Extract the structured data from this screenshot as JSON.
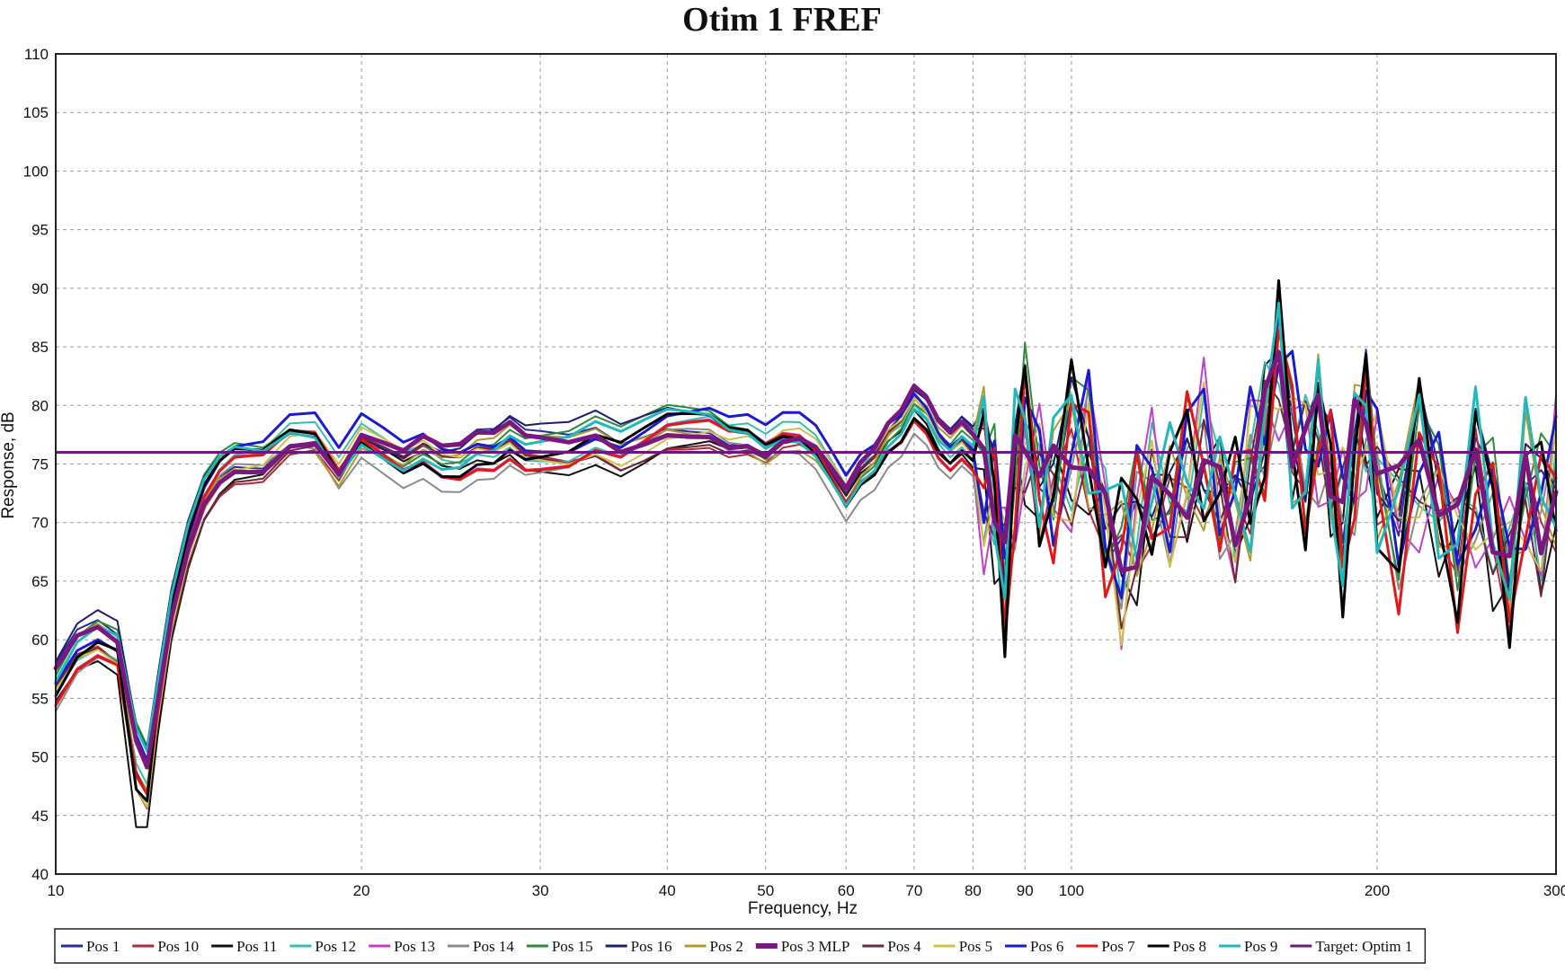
{
  "chart_data": {
    "type": "line",
    "title": "Otim 1 FREF",
    "xlabel": "Frequency, Hz",
    "ylabel": "Response, dB",
    "x_scale": "log",
    "xlim": [
      10,
      300
    ],
    "ylim": [
      40,
      110
    ],
    "x_ticks": [
      10,
      20,
      30,
      40,
      50,
      60,
      70,
      80,
      90,
      100,
      200,
      300
    ],
    "y_ticks": [
      40,
      45,
      50,
      55,
      60,
      65,
      70,
      75,
      80,
      85,
      90,
      95,
      100,
      105,
      110
    ],
    "grid": true,
    "legend_position": "bottom",
    "base_response": {
      "x": [
        10,
        10.5,
        11,
        11.5,
        12,
        12.3,
        12.6,
        13,
        13.5,
        14,
        14.5,
        15,
        15.5,
        16,
        17,
        18,
        19,
        20,
        21,
        22,
        23,
        24,
        25,
        26,
        27,
        28,
        29,
        30,
        32,
        34,
        36,
        38,
        40,
        42,
        44,
        46,
        48,
        50,
        52,
        54,
        56,
        58,
        60,
        62,
        64,
        66,
        68,
        70,
        72,
        74,
        76,
        78,
        80,
        82,
        84,
        86,
        88,
        90,
        93,
        96,
        100,
        104,
        108,
        112,
        116,
        120,
        125,
        130,
        135,
        140,
        145,
        150,
        155,
        160,
        165,
        170,
        175,
        180,
        185,
        190,
        195,
        200,
        210,
        220,
        230,
        240,
        250,
        260,
        270,
        280,
        290,
        300
      ],
      "y": [
        56,
        59,
        60,
        59,
        55,
        52,
        55,
        62,
        68,
        72,
        74,
        75,
        75,
        75,
        77,
        77,
        74,
        77,
        76,
        75,
        76,
        75,
        75,
        76,
        76,
        77,
        76,
        76,
        76,
        77,
        76,
        77,
        78,
        78,
        78,
        77,
        77,
        76,
        77,
        77,
        76,
        74,
        72,
        74,
        75,
        77,
        78,
        80,
        79,
        77,
        76,
        77,
        76,
        74,
        72,
        66,
        74,
        78,
        74,
        73,
        76,
        77,
        70,
        66,
        70,
        73,
        71,
        74,
        76,
        72,
        70,
        74,
        78,
        84,
        77,
        75,
        78,
        74,
        70,
        76,
        79,
        74,
        70,
        76,
        72,
        68,
        74,
        70,
        66,
        73,
        70,
        74
      ]
    },
    "series": [
      {
        "name": "Pos 1",
        "color": "#2b2b9a",
        "width": 2,
        "offset": 0.8,
        "phase": 0.3,
        "dip": 4,
        "hf": 5
      },
      {
        "name": "Pos 10",
        "color": "#b02a3a",
        "width": 2,
        "offset": -0.6,
        "phase": 1.1,
        "dip": 8,
        "hf": 6
      },
      {
        "name": "Pos 11",
        "color": "#111111",
        "width": 2,
        "offset": -0.9,
        "phase": 2.0,
        "dip": 12,
        "hf": 7
      },
      {
        "name": "Pos 12",
        "color": "#3bbcb0",
        "width": 2,
        "offset": 0.4,
        "phase": 2.7,
        "dip": 6,
        "hf": 6
      },
      {
        "name": "Pos 13",
        "color": "#c040c8",
        "width": 2,
        "offset": -0.3,
        "phase": 3.3,
        "dip": 7,
        "hf": 9
      },
      {
        "name": "Pos 14",
        "color": "#8a8a8a",
        "width": 2,
        "offset": -1.2,
        "phase": 4.0,
        "dip": 3,
        "hf": 6
      },
      {
        "name": "Pos 15",
        "color": "#2e8b3a",
        "width": 2,
        "offset": 1.0,
        "phase": 4.8,
        "dip": 5,
        "hf": 7
      },
      {
        "name": "Pos 16",
        "color": "#1e1e6e",
        "width": 2,
        "offset": 1.4,
        "phase": 5.5,
        "dip": 6,
        "hf": 5
      },
      {
        "name": "Pos 2",
        "color": "#b09a30",
        "width": 2,
        "offset": 0.2,
        "phase": 6.1,
        "dip": 9,
        "hf": 8
      },
      {
        "name": "Pos 3 MLP",
        "color": "#7a1880",
        "width": 5,
        "offset": 0.5,
        "phase": 6.9,
        "dip": 5,
        "hf": 4
      },
      {
        "name": "Pos 4",
        "color": "#6a2a3a",
        "width": 2,
        "offset": -0.5,
        "phase": 7.6,
        "dip": 6,
        "hf": 6
      },
      {
        "name": "Pos 5",
        "color": "#cfc04a",
        "width": 2,
        "offset": 0.0,
        "phase": 8.2,
        "dip": 8,
        "hf": 7
      },
      {
        "name": "Pos 6",
        "color": "#1a1ad0",
        "width": 3,
        "offset": 1.2,
        "phase": 8.9,
        "dip": 4,
        "hf": 7
      },
      {
        "name": "Pos 7",
        "color": "#e01818",
        "width": 3,
        "offset": -0.4,
        "phase": 9.6,
        "dip": 7,
        "hf": 8
      },
      {
        "name": "Pos 8",
        "color": "#000000",
        "width": 3,
        "offset": 0.1,
        "phase": 10.3,
        "dip": 10,
        "hf": 9
      },
      {
        "name": "Pos 9",
        "color": "#20b8b8",
        "width": 3,
        "offset": 0.6,
        "phase": 11.0,
        "dip": 5,
        "hf": 8
      }
    ],
    "target": {
      "name": "Target: Optim 1",
      "color": "#6a1a7a",
      "value": 76
    }
  }
}
